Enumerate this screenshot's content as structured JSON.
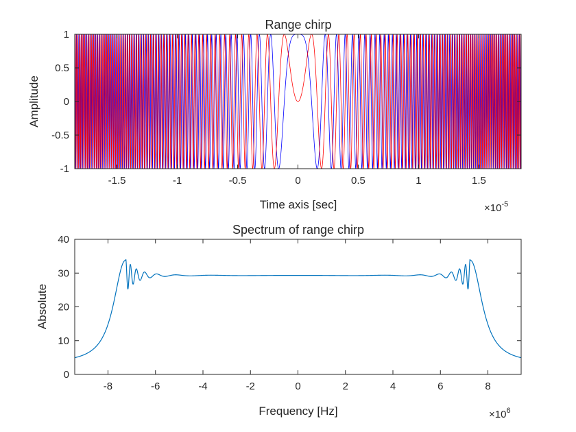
{
  "chart_data": [
    {
      "type": "line",
      "title": "Range chirp",
      "xlabel": "Time axis [sec]",
      "ylabel": "Amplitude",
      "x_exponent_label": "×10",
      "x_exponent": "-5",
      "xlim": [
        -1.85e-05,
        1.85e-05
      ],
      "ylim": [
        -1,
        1
      ],
      "xticks": [
        -1.5e-05,
        -1e-05,
        -5e-06,
        0,
        5e-06,
        1e-05,
        1.5e-05
      ],
      "xtick_labels": [
        "-1.5",
        "-1",
        "-0.5",
        "0",
        "0.5",
        "1",
        "1.5"
      ],
      "yticks": [
        -1,
        -0.5,
        0,
        0.5,
        1
      ],
      "ytick_labels": [
        "-1",
        "-0.5",
        "0",
        "0.5",
        "1"
      ],
      "grid": false,
      "chirp": {
        "pulse_width_sec": 3.7e-05,
        "bandwidth_hz": 14500000.0
      },
      "series": [
        {
          "component": "real",
          "color": "#0000ff",
          "function": "cos"
        },
        {
          "component": "imaginary",
          "color": "#ff0000",
          "function": "sin"
        }
      ]
    },
    {
      "type": "line",
      "title": "Spectrum of range chirp",
      "xlabel": "Frequency [Hz]",
      "ylabel": "Absolute",
      "x_exponent_label": "×10",
      "x_exponent": "6",
      "xlim": [
        -9400000.0,
        9400000.0
      ],
      "ylim": [
        0,
        40
      ],
      "xticks": [
        -8000000.0,
        -6000000.0,
        -4000000.0,
        -2000000.0,
        0,
        2000000.0,
        4000000.0,
        6000000.0,
        8000000.0
      ],
      "xtick_labels": [
        "-8",
        "-6",
        "-4",
        "-2",
        "0",
        "2",
        "4",
        "6",
        "8"
      ],
      "yticks": [
        0,
        10,
        20,
        30,
        40
      ],
      "ytick_labels": [
        "0",
        "10",
        "20",
        "30",
        "40"
      ],
      "grid": false,
      "series": [
        {
          "color": "#0072bd",
          "plateau_level": 29.3,
          "band_edge_hz": 7250000.0,
          "peak_value": 33.8,
          "floor_value": 3.2,
          "x": [
            -9400000.0,
            -9000000.0,
            -8600000.0,
            -8200000.0,
            -7900000.0,
            -7600000.0,
            -7400000.0,
            -7250000.0,
            -7000000.0,
            -6500000.0,
            -5500000.0,
            -4000000.0,
            -2000000.0,
            0,
            2000000.0,
            4000000.0,
            5500000.0,
            6500000.0,
            7000000.0,
            7250000.0,
            7400000.0,
            7600000.0,
            7900000.0,
            8200000.0,
            8600000.0,
            9000000.0,
            9400000.0
          ],
          "y": [
            3.2,
            4.0,
            6.3,
            11.5,
            18.5,
            27.0,
            31.5,
            33.8,
            28.0,
            30.5,
            29.6,
            29.4,
            29.3,
            29.3,
            29.3,
            29.4,
            29.6,
            30.5,
            28.0,
            33.8,
            31.5,
            27.0,
            18.5,
            11.5,
            6.3,
            4.0,
            3.2
          ]
        }
      ]
    }
  ]
}
